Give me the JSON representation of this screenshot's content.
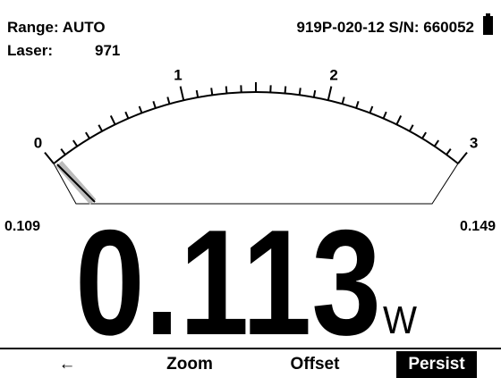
{
  "header": {
    "range": "Range: AUTO",
    "laser_label": "Laser:",
    "laser_value": "971",
    "device": "919P-020-12 S/N: 660052"
  },
  "gauge": {
    "scale_labels": [
      "0",
      "1",
      "2",
      "3"
    ]
  },
  "min_reading": "0.109",
  "max_reading": "0.149",
  "reading": "0.113",
  "unit": "W",
  "softkeys": [
    "←",
    "Zoom",
    "Offset",
    "Persist"
  ]
}
